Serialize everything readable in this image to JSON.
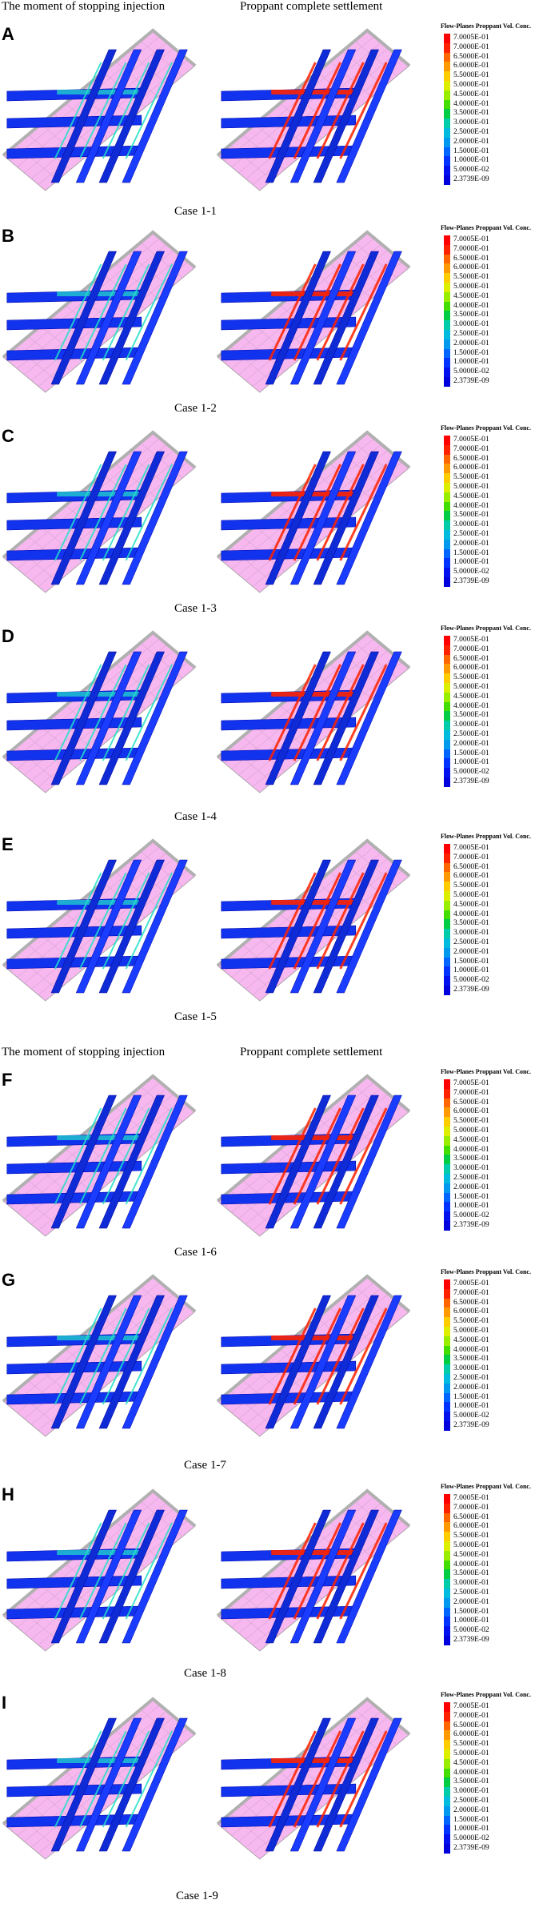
{
  "headers": [
    {
      "left": "The moment of stopping injection",
      "right": "Proppant complete settlement"
    },
    {
      "left": "The moment of stopping injection",
      "right": "Proppant complete settlement"
    }
  ],
  "legend": {
    "title": "Flow-Planes Proppant Vol. Conc.",
    "labels": [
      "7.0005E-01",
      "7.0000E-01",
      "6.5000E-01",
      "6.0000E-01",
      "5.5000E-01",
      "5.0000E-01",
      "4.5000E-01",
      "4.0000E-01",
      "3.5000E-01",
      "3.0000E-01",
      "2.5000E-01",
      "2.0000E-01",
      "1.5000E-01",
      "1.0000E-01",
      "5.0000E-02",
      "2.3739E-09"
    ],
    "colors": [
      "#ff0000",
      "#ff2200",
      "#ff6600",
      "#ff9900",
      "#ffcc00",
      "#ddee00",
      "#99ee00",
      "#44dd00",
      "#00cc44",
      "#00ccaa",
      "#00bbdd",
      "#0099ee",
      "#0066ff",
      "#0033ff",
      "#0011ee",
      "#0000dd"
    ]
  },
  "panels": [
    {
      "letter": "A",
      "caption": "Case 1-1"
    },
    {
      "letter": "B",
      "caption": "Case 1-2"
    },
    {
      "letter": "C",
      "caption": "Case 1-3"
    },
    {
      "letter": "D",
      "caption": "Case 1-4"
    },
    {
      "letter": "E",
      "caption": "Case 1-5"
    },
    {
      "letter": "F",
      "caption": "Case 1-6"
    },
    {
      "letter": "G",
      "caption": "Case 1-7"
    },
    {
      "letter": "H",
      "caption": "Case 1-8"
    },
    {
      "letter": "I",
      "caption": "Case 1-9"
    }
  ]
}
